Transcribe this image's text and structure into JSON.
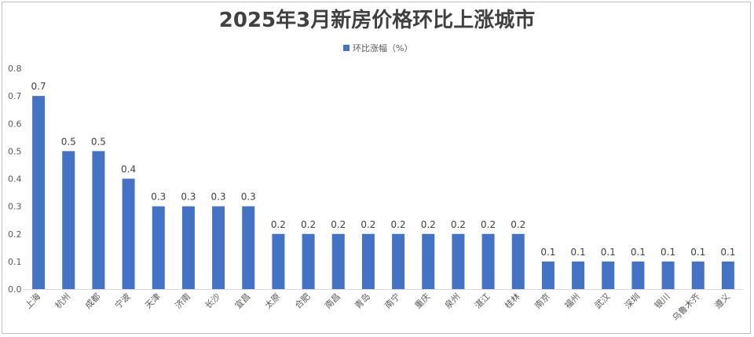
{
  "chart_data": {
    "type": "bar",
    "title": "2025年3月新房价格环比上涨城市",
    "legend": {
      "label": "环比涨幅（%）",
      "position": "top",
      "color": "#4472c4"
    },
    "categories": [
      "上海",
      "杭州",
      "成都",
      "宁波",
      "天津",
      "济南",
      "长沙",
      "宜昌",
      "太原",
      "合肥",
      "南昌",
      "青岛",
      "南宁",
      "重庆",
      "泉州",
      "湛江",
      "桂林",
      "南京",
      "福州",
      "武汉",
      "深圳",
      "银川",
      "乌鲁木齐",
      "遵义"
    ],
    "values": [
      0.7,
      0.5,
      0.5,
      0.4,
      0.3,
      0.3,
      0.3,
      0.3,
      0.2,
      0.2,
      0.2,
      0.2,
      0.2,
      0.2,
      0.2,
      0.2,
      0.2,
      0.1,
      0.1,
      0.1,
      0.1,
      0.1,
      0.1,
      0.1
    ],
    "ylim": [
      0,
      0.8
    ],
    "yticks": [
      "0.0",
      "0.1",
      "0.2",
      "0.3",
      "0.4",
      "0.5",
      "0.6",
      "0.7",
      "0.8"
    ],
    "grid": false,
    "bar_color": "#4472c4"
  }
}
